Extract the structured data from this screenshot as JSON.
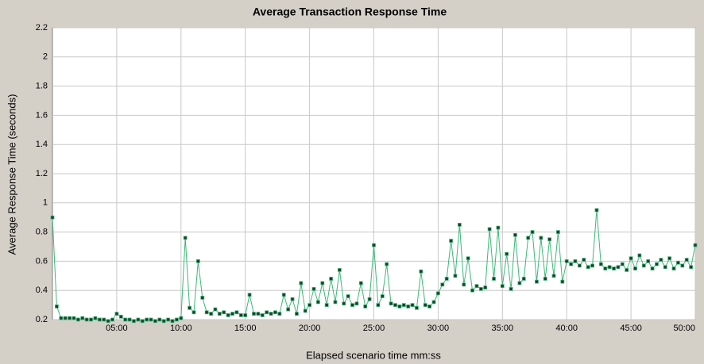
{
  "chart_data": {
    "type": "line",
    "title": "Average Transaction Response Time",
    "x_label": "Elapsed scenario time mm:ss",
    "y_label": "Average Response Time (seconds)",
    "x": [
      0,
      20,
      40,
      60,
      80,
      100,
      120,
      140,
      160,
      180,
      200,
      220,
      240,
      260,
      280,
      300,
      320,
      340,
      360,
      380,
      400,
      420,
      440,
      460,
      480,
      500,
      520,
      540,
      560,
      580,
      600,
      620,
      640,
      660,
      680,
      700,
      720,
      740,
      760,
      780,
      800,
      820,
      840,
      860,
      880,
      900,
      920,
      940,
      960,
      980,
      1000,
      1020,
      1040,
      1060,
      1080,
      1100,
      1120,
      1140,
      1160,
      1180,
      1200,
      1220,
      1240,
      1260,
      1280,
      1300,
      1320,
      1340,
      1360,
      1380,
      1400,
      1420,
      1440,
      1460,
      1480,
      1500,
      1520,
      1540,
      1560,
      1580,
      1600,
      1620,
      1640,
      1660,
      1680,
      1700,
      1720,
      1740,
      1760,
      1780,
      1800,
      1820,
      1840,
      1860,
      1880,
      1900,
      1920,
      1940,
      1960,
      1980,
      2000,
      2020,
      2040,
      2060,
      2080,
      2100,
      2120,
      2140,
      2160,
      2180,
      2200,
      2220,
      2240,
      2260,
      2280,
      2300,
      2320,
      2340,
      2360,
      2380,
      2400,
      2420,
      2440,
      2460,
      2480,
      2500,
      2520,
      2540,
      2560,
      2580,
      2600,
      2620,
      2640,
      2660,
      2680,
      2700,
      2720,
      2740,
      2760,
      2780,
      2800,
      2820,
      2840,
      2860,
      2880,
      2900,
      2920,
      2940,
      2960,
      2980,
      3000
    ],
    "series": [
      {
        "color": "#3cb878",
        "values": [
          0.9,
          0.29,
          0.21,
          0.21,
          0.21,
          0.21,
          0.2,
          0.21,
          0.2,
          0.2,
          0.21,
          0.2,
          0.2,
          0.19,
          0.2,
          0.24,
          0.22,
          0.2,
          0.2,
          0.19,
          0.2,
          0.19,
          0.2,
          0.2,
          0.19,
          0.2,
          0.19,
          0.2,
          0.19,
          0.2,
          0.21,
          0.76,
          0.28,
          0.25,
          0.6,
          0.35,
          0.25,
          0.24,
          0.27,
          0.24,
          0.25,
          0.23,
          0.24,
          0.25,
          0.23,
          0.23,
          0.37,
          0.24,
          0.24,
          0.23,
          0.25,
          0.24,
          0.25,
          0.24,
          0.37,
          0.27,
          0.34,
          0.24,
          0.45,
          0.26,
          0.3,
          0.41,
          0.32,
          0.45,
          0.3,
          0.48,
          0.32,
          0.54,
          0.31,
          0.36,
          0.3,
          0.31,
          0.45,
          0.29,
          0.34,
          0.71,
          0.3,
          0.36,
          0.58,
          0.31,
          0.3,
          0.29,
          0.3,
          0.29,
          0.3,
          0.28,
          0.53,
          0.3,
          0.29,
          0.32,
          0.38,
          0.44,
          0.48,
          0.74,
          0.5,
          0.85,
          0.44,
          0.62,
          0.4,
          0.43,
          0.41,
          0.42,
          0.82,
          0.48,
          0.83,
          0.43,
          0.65,
          0.41,
          0.78,
          0.45,
          0.48,
          0.76,
          0.8,
          0.46,
          0.76,
          0.48,
          0.75,
          0.5,
          0.8,
          0.46,
          0.6,
          0.58,
          0.6,
          0.57,
          0.61,
          0.56,
          0.57,
          0.95,
          0.58,
          0.55,
          0.56,
          0.55,
          0.56,
          0.58,
          0.54,
          0.62,
          0.55,
          0.64,
          0.57,
          0.6,
          0.55,
          0.58,
          0.61,
          0.56,
          0.62,
          0.55,
          0.59,
          0.57,
          0.61,
          0.56,
          0.71
        ]
      }
    ],
    "xlim": [
      0,
      3000
    ],
    "xticks": [
      {
        "value": 300,
        "label": "05:00"
      },
      {
        "value": 600,
        "label": "10:00"
      },
      {
        "value": 900,
        "label": "15:00"
      },
      {
        "value": 1200,
        "label": "20:00"
      },
      {
        "value": 1500,
        "label": "25:00"
      },
      {
        "value": 1800,
        "label": "30:00"
      },
      {
        "value": 2100,
        "label": "35:00"
      },
      {
        "value": 2400,
        "label": "40:00"
      },
      {
        "value": 2700,
        "label": "45:00"
      },
      {
        "value": 3000,
        "label": "50:00"
      }
    ],
    "ylim": [
      0.2,
      2.2
    ],
    "yticks": [
      0.2,
      0.4,
      0.6,
      0.8,
      1,
      1.2,
      1.4,
      1.6,
      1.8,
      2,
      2.2
    ],
    "grid": true
  }
}
